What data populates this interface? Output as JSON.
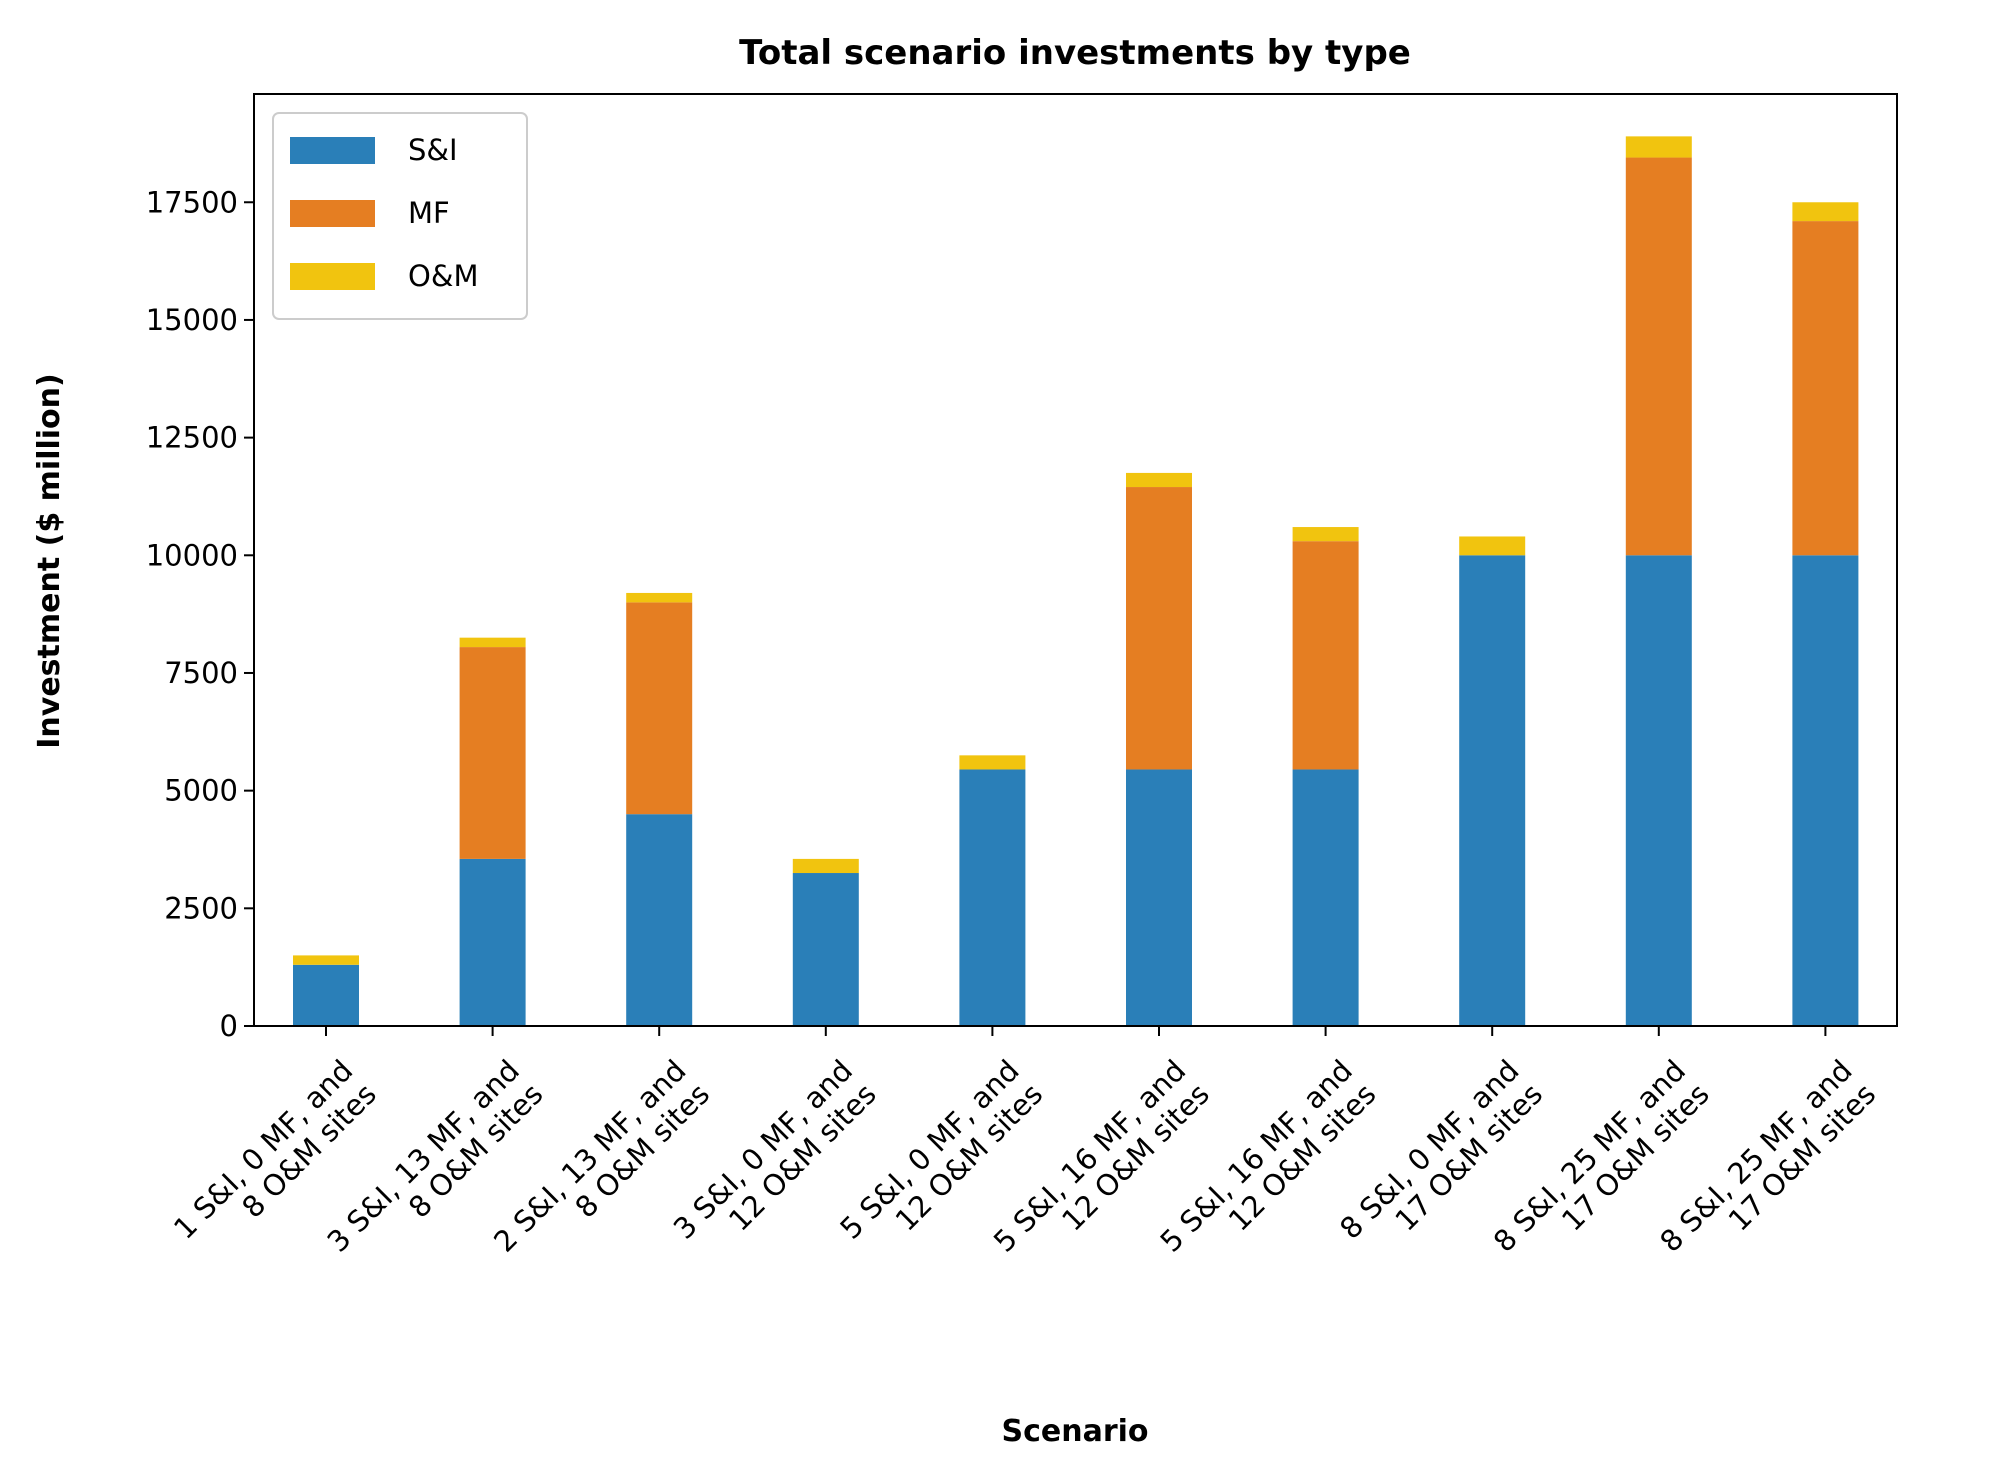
{
  "chart_data": {
    "type": "bar",
    "stacked": true,
    "title": "Total scenario investments by type",
    "xlabel": "Scenario",
    "ylabel": "Investment ($ million)",
    "ylim": [
      0,
      19800
    ],
    "yticks": [
      0,
      2500,
      5000,
      7500,
      10000,
      12500,
      15000,
      17500
    ],
    "legend_position": "top-left",
    "grid": false,
    "categories": [
      [
        "1 S&I, 0 MF, and",
        "8 O&M sites"
      ],
      [
        "3 S&I, 13 MF, and",
        "8 O&M sites"
      ],
      [
        "2 S&I, 13 MF, and",
        "8 O&M sites"
      ],
      [
        "3 S&I, 0 MF, and",
        "12 O&M sites"
      ],
      [
        "5 S&I, 0 MF, and",
        "12 O&M sites"
      ],
      [
        "5 S&I, 16 MF, and",
        "12 O&M sites"
      ],
      [
        "5 S&I, 16 MF, and",
        "12 O&M sites"
      ],
      [
        "8 S&I, 0 MF, and",
        "17 O&M sites"
      ],
      [
        "8 S&I, 25 MF, and",
        "17 O&M sites"
      ],
      [
        "8 S&I, 25 MF, and",
        "17 O&M sites"
      ]
    ],
    "series": [
      {
        "name": "S&I",
        "color": "#2a7fb8",
        "values": [
          1300,
          3550,
          4500,
          3250,
          5450,
          5450,
          5450,
          10000,
          10000,
          10000
        ]
      },
      {
        "name": "MF",
        "color": "#e57e22",
        "values": [
          0,
          4500,
          4500,
          0,
          0,
          6000,
          4850,
          0,
          8450,
          7100
        ]
      },
      {
        "name": "O&M",
        "color": "#f1c40f",
        "values": [
          200,
          200,
          200,
          300,
          300,
          300,
          300,
          400,
          450,
          400
        ]
      }
    ]
  }
}
